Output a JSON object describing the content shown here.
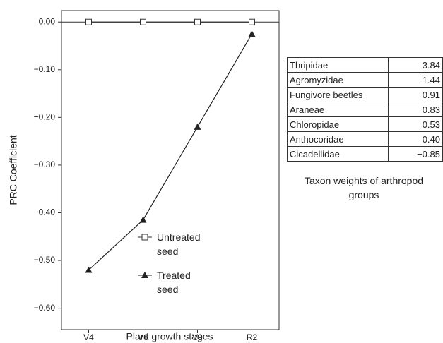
{
  "chart_data": {
    "type": "line",
    "x_label": "Plant growth stages",
    "y_label": "PRC Coefficient",
    "categories": [
      "V4",
      "V6",
      "V9",
      "R2"
    ],
    "series": [
      {
        "name": "Untreated seed",
        "color": "#333333",
        "marker": "open-square",
        "values": [
          0,
          0,
          0,
          0
        ]
      },
      {
        "name": "Treated seed",
        "color": "#222222",
        "marker": "filled-triangle",
        "values": [
          -0.52,
          -0.415,
          -0.22,
          -0.025
        ]
      }
    ],
    "ylim": [
      -0.645,
      0.024
    ],
    "yticks": [
      {
        "value": 0,
        "label": "0.00"
      },
      {
        "value": -0.1,
        "label": "−0.10"
      },
      {
        "value": -0.2,
        "label": "−0.20"
      },
      {
        "value": -0.3,
        "label": "−0.30"
      },
      {
        "value": -0.4,
        "label": "−0.40"
      },
      {
        "value": -0.5,
        "label": "−0.50"
      },
      {
        "value": -0.6,
        "label": "−0.60"
      }
    ],
    "grid": false
  },
  "table": {
    "rows": [
      [
        "Thripidae",
        "3.84"
      ],
      [
        "Agromyzidae",
        "1.44"
      ],
      [
        "Fungivore beetles",
        "0.91"
      ],
      [
        "Araneae",
        "0.83"
      ],
      [
        "Chloropidae",
        "0.53"
      ],
      [
        "Anthocoridae",
        "0.40"
      ],
      [
        "Cicadellidae",
        "−0.85"
      ]
    ],
    "caption": "Taxon weights of arthropod groups"
  }
}
